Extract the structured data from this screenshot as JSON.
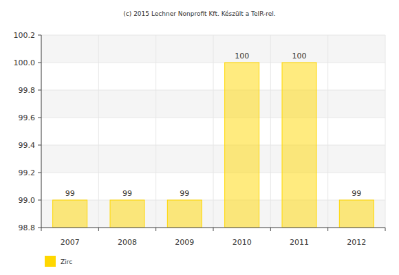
{
  "chart_data": {
    "type": "bar",
    "title": "(c) 2015 Lechner Nonprofit Kft. Készült a TeIR-rel.",
    "categories": [
      "2007",
      "2008",
      "2009",
      "2010",
      "2011",
      "2012"
    ],
    "series": [
      {
        "name": "Zirc",
        "color": "#ffd700",
        "values": [
          99,
          99,
          99,
          100,
          100,
          99
        ]
      }
    ],
    "ylim": [
      98.8,
      100.2
    ],
    "yticks": [
      98.8,
      {
        "value": 99,
        "label": "99.0"
      },
      99.2,
      99.4,
      99.6,
      99.8,
      {
        "value": 100,
        "label": "100.0"
      },
      100.2
    ],
    "grid": true,
    "data_labels": true,
    "legend": "bottom-left"
  }
}
